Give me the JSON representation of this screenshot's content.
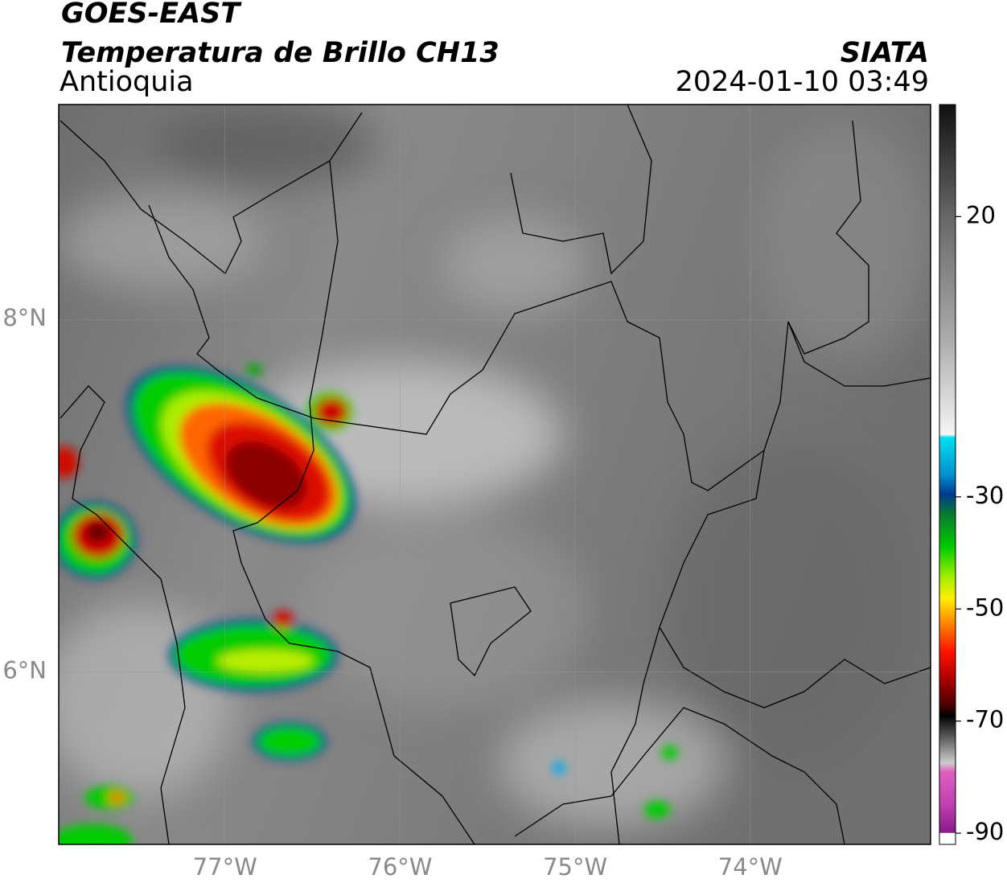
{
  "header": {
    "title": "GOES-EAST",
    "subtitle": "Temperatura de Brillo CH13",
    "region": "Antioquia",
    "source": "SIATA",
    "datetime": "2024-01-10 03:49"
  },
  "map": {
    "xlim": [
      -77.95,
      -72.97
    ],
    "ylim": [
      5.02,
      9.22
    ],
    "xticks": [
      {
        "value": -77,
        "label": "77°W"
      },
      {
        "value": -76,
        "label": "76°W"
      },
      {
        "value": -75,
        "label": "75°W"
      },
      {
        "value": -74,
        "label": "74°W"
      }
    ],
    "yticks": [
      {
        "value": 8,
        "label": "8°N"
      },
      {
        "value": 6,
        "label": "6°N"
      }
    ]
  },
  "colorbar": {
    "lim": [
      -92,
      40
    ],
    "ticks": [
      20,
      -30,
      -50,
      -70,
      -90
    ]
  }
}
